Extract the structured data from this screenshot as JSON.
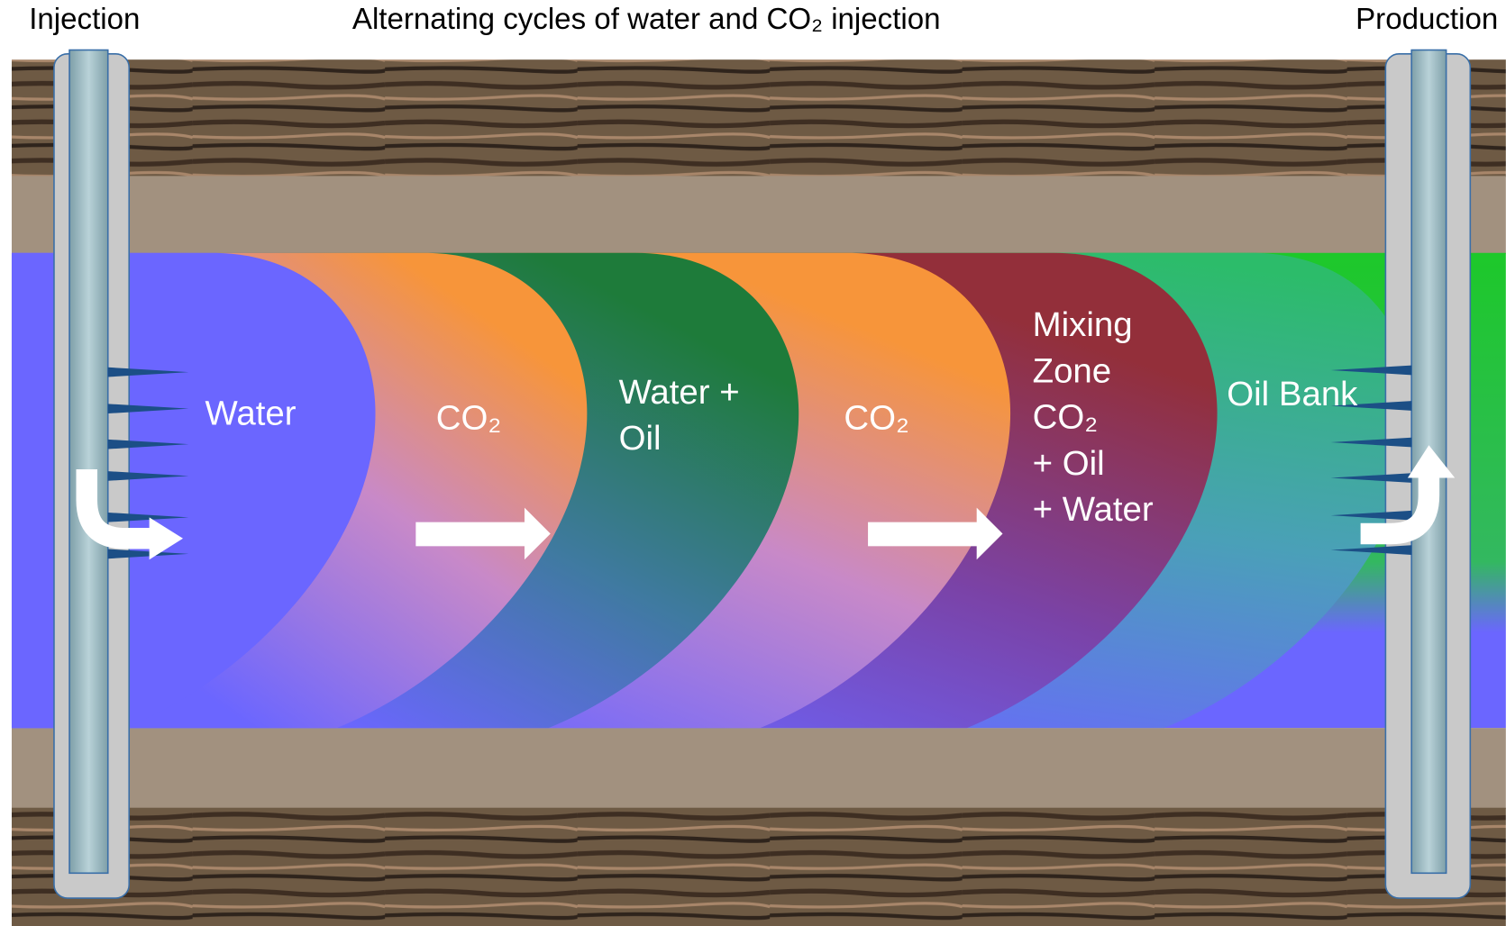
{
  "header": {
    "left": "Injection",
    "title": "Alternating cycles of water and CO₂ injection",
    "right": "Production"
  },
  "zones": [
    {
      "lines": [
        "Water"
      ]
    },
    {
      "lines": [
        "CO₂"
      ]
    },
    {
      "lines": [
        "Water +",
        "Oil"
      ]
    },
    {
      "lines": [
        "CO₂"
      ]
    },
    {
      "lines": [
        "Mixing",
        "Zone",
        "CO₂",
        "+ Oil",
        "+ Water"
      ]
    },
    {
      "lines": [
        "Oil Bank"
      ]
    }
  ]
}
